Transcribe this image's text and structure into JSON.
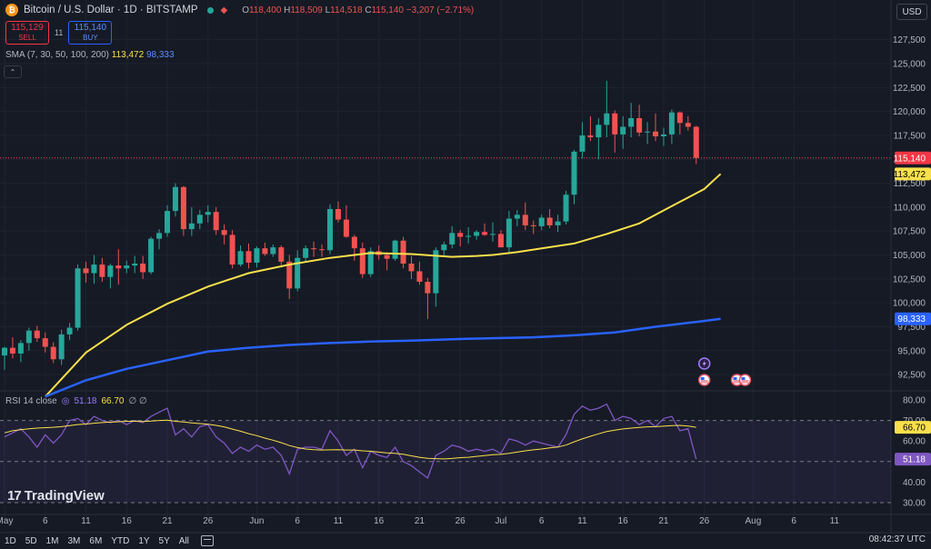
{
  "header": {
    "symbol": "Bitcoin / U.S. Dollar · 1D · BITSTAMP",
    "icon": "bitcoin-icon",
    "ohlc": [
      {
        "k": "O",
        "v": "118,400"
      },
      {
        "k": "H",
        "v": "118,509"
      },
      {
        "k": "L",
        "v": "114,518"
      },
      {
        "k": "C",
        "v": "115,140"
      }
    ],
    "change": "−3,207 (−2.71%)",
    "sell_price": "115,129",
    "sell_label": "SELL",
    "spread": "11",
    "buy_price": "115,140",
    "buy_label": "BUY",
    "currency": "USD"
  },
  "sma_legend": {
    "label": "SMA (7, 30, 50, 100, 200)",
    "v1": "113,472",
    "v2": "98,333"
  },
  "rsi_legend": {
    "label": "RSI 14 close",
    "v1": "51.18",
    "v2": "66.70",
    "extra": "∅ ∅"
  },
  "logo": "TradingView",
  "bottom": {
    "ranges": [
      "1D",
      "5D",
      "1M",
      "3M",
      "6M",
      "YTD",
      "1Y",
      "5Y",
      "All"
    ],
    "clock": "08:42:37 UTC"
  },
  "colors": {
    "up": "#26a69a",
    "down": "#ef5350",
    "sma_fast": "#f9e04b",
    "sma_slow": "#2962ff",
    "rsi": "#7e57c2",
    "rsi_ma": "#f9e04b"
  },
  "chart_data": {
    "type": "candlestick",
    "price_axis": {
      "ticks": [
        "127,500",
        "125,000",
        "122,500",
        "120,000",
        "117,500",
        "115,000",
        "112,500",
        "110,000",
        "107,500",
        "105,000",
        "102,500",
        "100,000",
        "97,500",
        "95,000",
        "92,500"
      ],
      "ylim": [
        90800,
        128800
      ],
      "labels": [
        {
          "text": "115,140",
          "value": 115140,
          "color": "#f23645",
          "fg": "#ffffff"
        },
        {
          "text": "113,472",
          "value": 113472,
          "color": "#f9e04b",
          "fg": "#000000"
        },
        {
          "text": "98,333",
          "value": 98333,
          "color": "#2962ff",
          "fg": "#ffffff"
        }
      ]
    },
    "rsi_axis": {
      "ticks": [
        "80.00",
        "70.00",
        "60.00",
        "50.00",
        "40.00",
        "30.00"
      ],
      "ylim": [
        26,
        84
      ],
      "labels": [
        {
          "text": "66.70",
          "value": 66.7,
          "color": "#f9e04b",
          "fg": "#000000"
        },
        {
          "text": "51.18",
          "value": 51.18,
          "color": "#7e57c2",
          "fg": "#ffffff"
        }
      ]
    },
    "x_ticks": [
      {
        "label": "May",
        "index": 0
      },
      {
        "label": "6",
        "index": 5
      },
      {
        "label": "11",
        "index": 10
      },
      {
        "label": "16",
        "index": 15
      },
      {
        "label": "21",
        "index": 20
      },
      {
        "label": "26",
        "index": 25
      },
      {
        "label": "Jun",
        "index": 31
      },
      {
        "label": "6",
        "index": 36
      },
      {
        "label": "11",
        "index": 41
      },
      {
        "label": "16",
        "index": 46
      },
      {
        "label": "21",
        "index": 51
      },
      {
        "label": "26",
        "index": 56
      },
      {
        "label": "Jul",
        "index": 61
      },
      {
        "label": "6",
        "index": 66
      },
      {
        "label": "11",
        "index": 71
      },
      {
        "label": "16",
        "index": 76
      },
      {
        "label": "21",
        "index": 81
      },
      {
        "label": "26",
        "index": 86
      },
      {
        "label": "Aug",
        "index": 92
      },
      {
        "label": "6",
        "index": 97
      },
      {
        "label": "11",
        "index": 102
      }
    ],
    "candles": [
      [
        94500,
        95400,
        93000,
        95300
      ],
      [
        95300,
        96400,
        94200,
        94700
      ],
      [
        94700,
        96100,
        93800,
        95800
      ],
      [
        95800,
        97400,
        95000,
        97100
      ],
      [
        97100,
        97600,
        95900,
        96300
      ],
      [
        96300,
        96900,
        94800,
        95400
      ],
      [
        95400,
        95900,
        93700,
        94100
      ],
      [
        94100,
        97200,
        93500,
        96700
      ],
      [
        96700,
        97900,
        96100,
        97400
      ],
      [
        97400,
        104000,
        97100,
        103600
      ],
      [
        103600,
        104300,
        102100,
        103100
      ],
      [
        103100,
        105000,
        102000,
        104000
      ],
      [
        104000,
        104700,
        102200,
        102700
      ],
      [
        102700,
        104100,
        101500,
        103900
      ],
      [
        103900,
        105600,
        101900,
        103600
      ],
      [
        103600,
        104400,
        103100,
        103900
      ],
      [
        103900,
        104900,
        103100,
        104100
      ],
      [
        104100,
        104900,
        102500,
        103200
      ],
      [
        103200,
        106900,
        103000,
        106700
      ],
      [
        106700,
        107700,
        105600,
        107300
      ],
      [
        107300,
        110200,
        106900,
        109600
      ],
      [
        109600,
        112500,
        109000,
        112100
      ],
      [
        112100,
        112200,
        107000,
        107700
      ],
      [
        107700,
        110000,
        107000,
        108300
      ],
      [
        108300,
        109700,
        107700,
        109200
      ],
      [
        109200,
        110200,
        108400,
        109500
      ],
      [
        109500,
        110000,
        107100,
        107600
      ],
      [
        107600,
        108200,
        106100,
        107100
      ],
      [
        107100,
        107600,
        103600,
        104000
      ],
      [
        104000,
        106000,
        103800,
        105400
      ],
      [
        105400,
        106200,
        103600,
        104200
      ],
      [
        104200,
        105900,
        103700,
        105700
      ],
      [
        105700,
        106300,
        104900,
        105100
      ],
      [
        105100,
        106100,
        104800,
        105800
      ],
      [
        105800,
        106000,
        103700,
        104300
      ],
      [
        104300,
        105000,
        100400,
        101500
      ],
      [
        101500,
        105500,
        101200,
        104700
      ],
      [
        104700,
        106000,
        104300,
        105700
      ],
      [
        105700,
        106400,
        104800,
        105600
      ],
      [
        105600,
        106100,
        104800,
        105500
      ],
      [
        105500,
        110300,
        105100,
        109800
      ],
      [
        109800,
        110600,
        108400,
        108700
      ],
      [
        108700,
        110200,
        106800,
        106900
      ],
      [
        106900,
        107100,
        104400,
        105700
      ],
      [
        105700,
        106300,
        102600,
        103000
      ],
      [
        103000,
        105800,
        102700,
        105400
      ],
      [
        105400,
        106000,
        104500,
        105000
      ],
      [
        105000,
        105300,
        103400,
        104600
      ],
      [
        104600,
        106600,
        104400,
        106500
      ],
      [
        106500,
        106900,
        103600,
        104100
      ],
      [
        104100,
        104900,
        102500,
        103300
      ],
      [
        103300,
        104300,
        101900,
        102200
      ],
      [
        102200,
        102600,
        98300,
        101000
      ],
      [
        101000,
        105800,
        99600,
        105500
      ],
      [
        105500,
        106400,
        104800,
        106100
      ],
      [
        106100,
        108000,
        105700,
        107300
      ],
      [
        107300,
        107600,
        105900,
        106900
      ],
      [
        106900,
        107900,
        106200,
        107000
      ],
      [
        107000,
        107600,
        106600,
        107400
      ],
      [
        107400,
        108300,
        107000,
        107100
      ],
      [
        107100,
        108400,
        106400,
        107200
      ],
      [
        107200,
        107600,
        105900,
        105800
      ],
      [
        105800,
        109600,
        105300,
        108800
      ],
      [
        108800,
        109700,
        108000,
        109200
      ],
      [
        109200,
        110500,
        107600,
        108100
      ],
      [
        108100,
        108600,
        107200,
        108000
      ],
      [
        108000,
        109200,
        107600,
        108900
      ],
      [
        108900,
        109800,
        107800,
        108100
      ],
      [
        108100,
        109200,
        107400,
        108500
      ],
      [
        108500,
        111700,
        108200,
        111300
      ],
      [
        111300,
        116000,
        110300,
        115800
      ],
      [
        115800,
        118900,
        115100,
        117500
      ],
      [
        117500,
        119500,
        116900,
        117300
      ],
      [
        117300,
        119300,
        115000,
        118600
      ],
      [
        118600,
        123200,
        117300,
        119800
      ],
      [
        119800,
        120100,
        115700,
        117600
      ],
      [
        117600,
        119500,
        116100,
        118400
      ],
      [
        118400,
        120900,
        117300,
        119300
      ],
      [
        119300,
        120700,
        117400,
        117800
      ],
      [
        117800,
        118900,
        116600,
        117900
      ],
      [
        117900,
        119800,
        116900,
        117400
      ],
      [
        117400,
        118300,
        116400,
        117600
      ],
      [
        117600,
        120200,
        116600,
        119900
      ],
      [
        119900,
        120000,
        117600,
        118800
      ],
      [
        118800,
        119500,
        118000,
        118400
      ],
      [
        118400,
        118500,
        114500,
        115140
      ]
    ],
    "series": [
      {
        "name": "SMA fast",
        "color": "#f9e04b",
        "values": [
          [
            5,
            90200
          ],
          [
            10,
            94800
          ],
          [
            15,
            97700
          ],
          [
            20,
            99900
          ],
          [
            25,
            101700
          ],
          [
            30,
            103100
          ],
          [
            35,
            104000
          ],
          [
            40,
            104700
          ],
          [
            45,
            105200
          ],
          [
            50,
            105100
          ],
          [
            55,
            104800
          ],
          [
            58,
            104900
          ],
          [
            60,
            105000
          ],
          [
            63,
            105300
          ],
          [
            66,
            105700
          ],
          [
            70,
            106200
          ],
          [
            74,
            107200
          ],
          [
            78,
            108300
          ],
          [
            82,
            110100
          ],
          [
            86,
            111900
          ],
          [
            88,
            113472
          ]
        ]
      },
      {
        "name": "SMA slow",
        "color": "#2962ff",
        "values": [
          [
            5,
            90200
          ],
          [
            10,
            91900
          ],
          [
            15,
            93100
          ],
          [
            20,
            94000
          ],
          [
            25,
            94900
          ],
          [
            30,
            95300
          ],
          [
            35,
            95600
          ],
          [
            40,
            95800
          ],
          [
            45,
            95950
          ],
          [
            50,
            96050
          ],
          [
            55,
            96200
          ],
          [
            60,
            96300
          ],
          [
            65,
            96400
          ],
          [
            70,
            96600
          ],
          [
            75,
            96900
          ],
          [
            80,
            97500
          ],
          [
            85,
            98000
          ],
          [
            88,
            98333
          ]
        ]
      }
    ],
    "rsi": {
      "values": [
        62,
        64,
        66,
        62,
        57,
        63,
        59,
        63,
        70,
        71,
        68,
        72,
        70,
        69,
        70,
        68,
        70,
        69,
        72,
        74,
        76,
        63,
        66,
        62,
        67,
        68,
        62,
        59,
        54,
        57,
        55,
        58,
        56,
        57,
        53,
        44,
        56,
        57,
        57,
        56,
        65,
        60,
        53,
        56,
        47,
        55,
        53,
        52,
        57,
        50,
        48,
        45,
        42,
        53,
        55,
        58,
        57,
        55,
        56,
        55,
        56,
        54,
        61,
        60,
        58,
        60,
        59,
        58,
        57,
        63,
        73,
        77,
        75,
        76,
        78,
        70,
        72,
        71,
        68,
        70,
        67,
        71,
        72,
        65,
        66,
        51.18
      ],
      "ma": [
        64,
        65,
        65.5,
        66,
        66.3,
        66.5,
        66.7,
        67,
        67.5,
        68,
        68.3,
        68.7,
        69,
        69.2,
        69.4,
        69.6,
        69.6,
        69.5,
        69.7,
        70,
        70.2,
        69.6,
        69.3,
        68.8,
        68.5,
        68.2,
        67.6,
        66.9,
        65.8,
        64.8,
        63.6,
        62.6,
        61.4,
        60.4,
        59.2,
        57.8,
        56.8,
        56.1,
        55.8,
        55.6,
        55.7,
        55.8,
        55.6,
        55.6,
        55.2,
        55,
        54.6,
        54.2,
        54,
        53.6,
        52.8,
        52.1,
        51.6,
        51.4,
        51.3,
        51.5,
        51.9,
        52.1,
        52.5,
        52.9,
        53.3,
        53.5,
        54,
        54.6,
        55.2,
        55.7,
        56.1,
        56.7,
        57.1,
        58,
        59.6,
        61,
        62.3,
        63.5,
        64.6,
        65.3,
        65.9,
        66.3,
        66.6,
        66.9,
        67,
        67.2,
        67.5,
        67.6,
        67.3,
        66.7
      ]
    },
    "markers": [
      {
        "index": 86,
        "row": "upper",
        "name": "lightning-event-icon"
      },
      {
        "index": 86,
        "row": "lower",
        "name": "us-flag-event-icon"
      },
      {
        "index": 90,
        "row": "lower",
        "name": "us-flag-event-icon"
      },
      {
        "index": 91,
        "row": "lower",
        "name": "us-flag-event-icon"
      }
    ]
  }
}
